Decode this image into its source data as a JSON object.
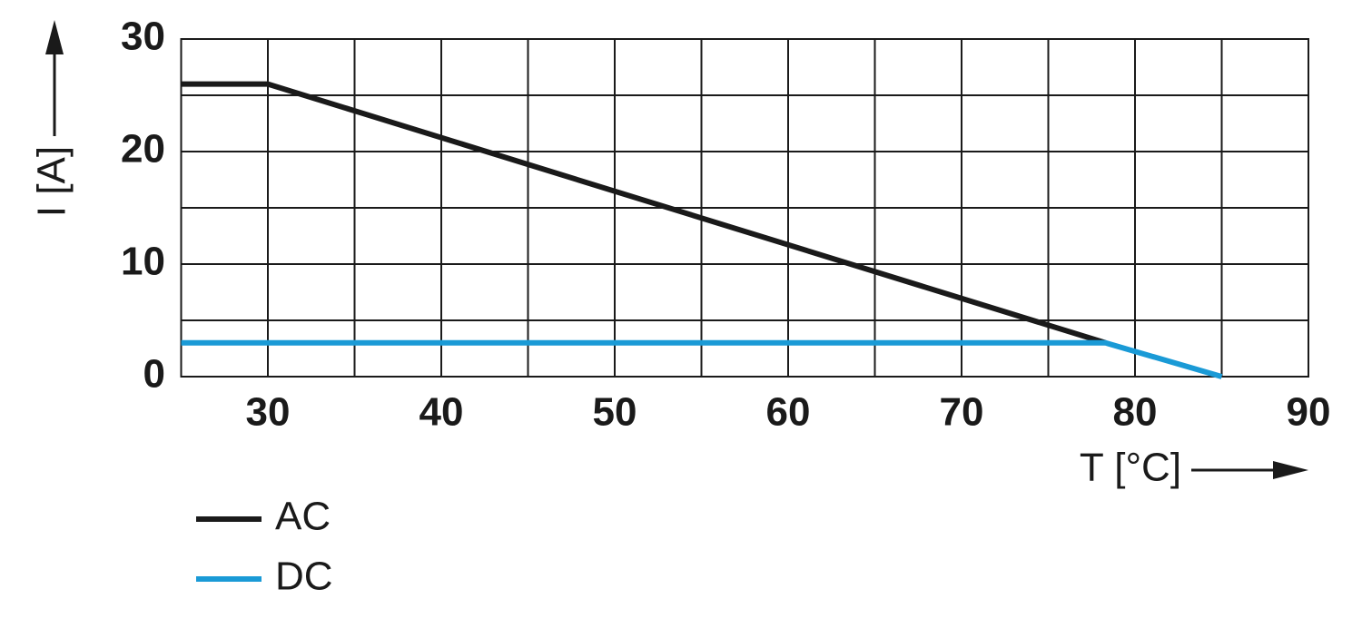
{
  "chart_data": {
    "type": "line",
    "xlabel": "T [°C]",
    "ylabel": "I [A]",
    "xlim": [
      25,
      90
    ],
    "ylim": [
      0,
      30
    ],
    "xticks": [
      30,
      40,
      50,
      60,
      70,
      80,
      90
    ],
    "yticks": [
      0,
      10,
      20,
      30
    ],
    "x_minor_ticks": [
      25,
      35,
      45,
      55,
      65,
      75,
      85
    ],
    "y_minor_ticks": [
      5,
      15,
      25
    ],
    "grid": true,
    "legend": "bottom-left",
    "series": [
      {
        "name": "AC",
        "color": "#1a1a1a",
        "x": [
          25,
          30,
          78.3
        ],
        "values": [
          26,
          26,
          3
        ]
      },
      {
        "name": "DC",
        "color": "#1a9ad6",
        "x": [
          25,
          78.3,
          85
        ],
        "values": [
          3,
          3,
          0
        ]
      }
    ]
  }
}
